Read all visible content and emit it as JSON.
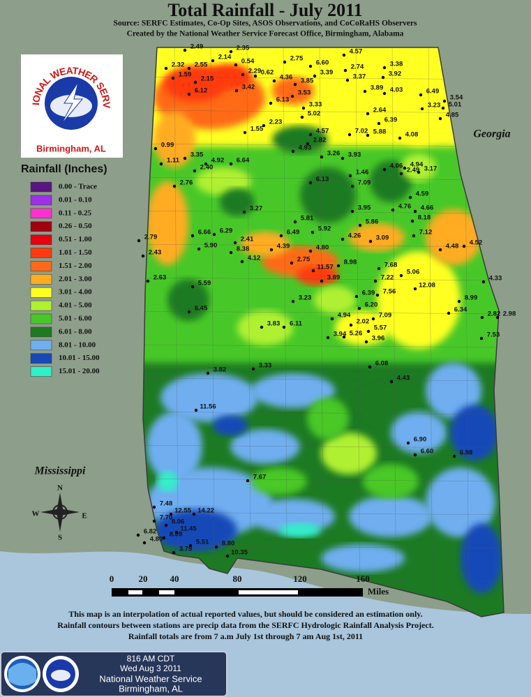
{
  "header": {
    "title": "Total Rainfall - July 2011",
    "subtitle_lines": [
      "Source: SERFC Estimates, Co-Op Sites, ASOS Observations, and CoCoRaHS Observers",
      "Created by the National Weather Service Forecast Office, Birmingham, Alabama"
    ]
  },
  "logo": {
    "ring_text": "NATIONAL WEATHER SERVICE",
    "office": "Birmingham, AL"
  },
  "legend": {
    "title": "Rainfall (Inches)",
    "items": [
      {
        "label": "0.00 - Trace",
        "color": "#5a1680"
      },
      {
        "label": "0.01 - 0.10",
        "color": "#a030e8"
      },
      {
        "label": "0.11 - 0.25",
        "color": "#ff30d0"
      },
      {
        "label": "0.26 - 0.50",
        "color": "#a00010"
      },
      {
        "label": "0.51 - 1.00",
        "color": "#e80010"
      },
      {
        "label": "1.01 - 1.50",
        "color": "#ff3a10"
      },
      {
        "label": "1.51 - 2.00",
        "color": "#ff6a18"
      },
      {
        "label": "2.01 - 3.00",
        "color": "#ffac20"
      },
      {
        "label": "3.01 - 4.00",
        "color": "#ffff20"
      },
      {
        "label": "4.01 - 5.00",
        "color": "#b0f030"
      },
      {
        "label": "5.01 - 6.00",
        "color": "#48c828"
      },
      {
        "label": "6.01 - 8.00",
        "color": "#1e7a22"
      },
      {
        "label": "8.01 - 10.00",
        "color": "#70aef0"
      },
      {
        "label": "10.01 - 15.00",
        "color": "#1848b8"
      },
      {
        "label": "15.01 - 20.00",
        "color": "#30f0c8"
      }
    ]
  },
  "places": {
    "east": "Georgia",
    "west": "Mississippi"
  },
  "compass": {
    "n": "N",
    "s": "S",
    "e": "E",
    "w": "W"
  },
  "scale_bar": {
    "labels": [
      "0",
      "20",
      "40",
      "80",
      "120",
      "160"
    ],
    "unit": "Miles"
  },
  "stations": [
    "2.49",
    "2.32",
    "2.55",
    "2.14",
    "0.54",
    "2.35",
    "2.75",
    "6.60",
    "4.57",
    "3.38",
    "1.59",
    "2.15",
    "2.29",
    "0.62",
    "4.36",
    "3.85",
    "3.39",
    "2.74",
    "3.92",
    "6.12",
    "3.42",
    "3.53",
    "3.37",
    "3.89",
    "4.03",
    "6.49",
    "3.54",
    "5.01",
    "4.85",
    "3.23",
    "6.13",
    "3.33",
    "5.02",
    "2.64",
    "6.39",
    "7.02",
    "5.88",
    "1.55",
    "2.23",
    "4.57",
    "2.82",
    "4.08",
    "0.99",
    "4.93",
    "3.35",
    "3.26",
    "3.93",
    "1.11",
    "4.92",
    "6.64",
    "4.06",
    "4.94",
    "2.49",
    "3.17",
    "2.40",
    "1.46",
    "2.76",
    "6.13",
    "7.09",
    "4.59",
    "4.76",
    "4.66",
    "8.18",
    "3.27",
    "5.81",
    "3.95",
    "5.86",
    "6.66",
    "6.29",
    "6.49",
    "5.92",
    "4.26",
    "3.09",
    "7.12",
    "2.79",
    "2.41",
    "5.90",
    "8.38",
    "4.39",
    "4.80",
    "4.48",
    "4.52",
    "2.43",
    "4.12",
    "2.75",
    "8.98",
    "7.68",
    "11.57",
    "5.06",
    "2.63",
    "5.59",
    "3.89",
    "7.22",
    "12.08",
    "4.33",
    "6.39",
    "7.56",
    "8.99",
    "3.23",
    "6.20",
    "6.45",
    "6.34",
    "2.82",
    "2.98",
    "4.94",
    "7.09",
    "2.02",
    "3.83",
    "6.11",
    "5.57",
    "3.94",
    "5.26",
    "3.96",
    "7.53",
    "6.08",
    "3.33",
    "3.82",
    "4.43",
    "11.56",
    "6.90",
    "6.60",
    "6.98",
    "7.67",
    "7.48",
    "12.55",
    "14.22",
    "7.70",
    "8.06",
    "11.45",
    "6.82",
    "4.80",
    "8.09",
    "3.79",
    "5.51",
    "8.80",
    "10.35"
  ],
  "footer_lines": [
    "This map is an interpolation of actual reported values, but should be considered an estimation only.",
    "Rainfall contours between stations are precip data from the SERFC Hydrologic Rainfall Analysis Project.",
    "Rainfall totals are from 7 a.m July 1st through 7 am Aug 1st, 2011"
  ],
  "info_box": {
    "time": "816 AM CDT",
    "date": "Wed Aug 3 2011",
    "agency": "National Weather Service",
    "office": "Birmingham, AL"
  }
}
